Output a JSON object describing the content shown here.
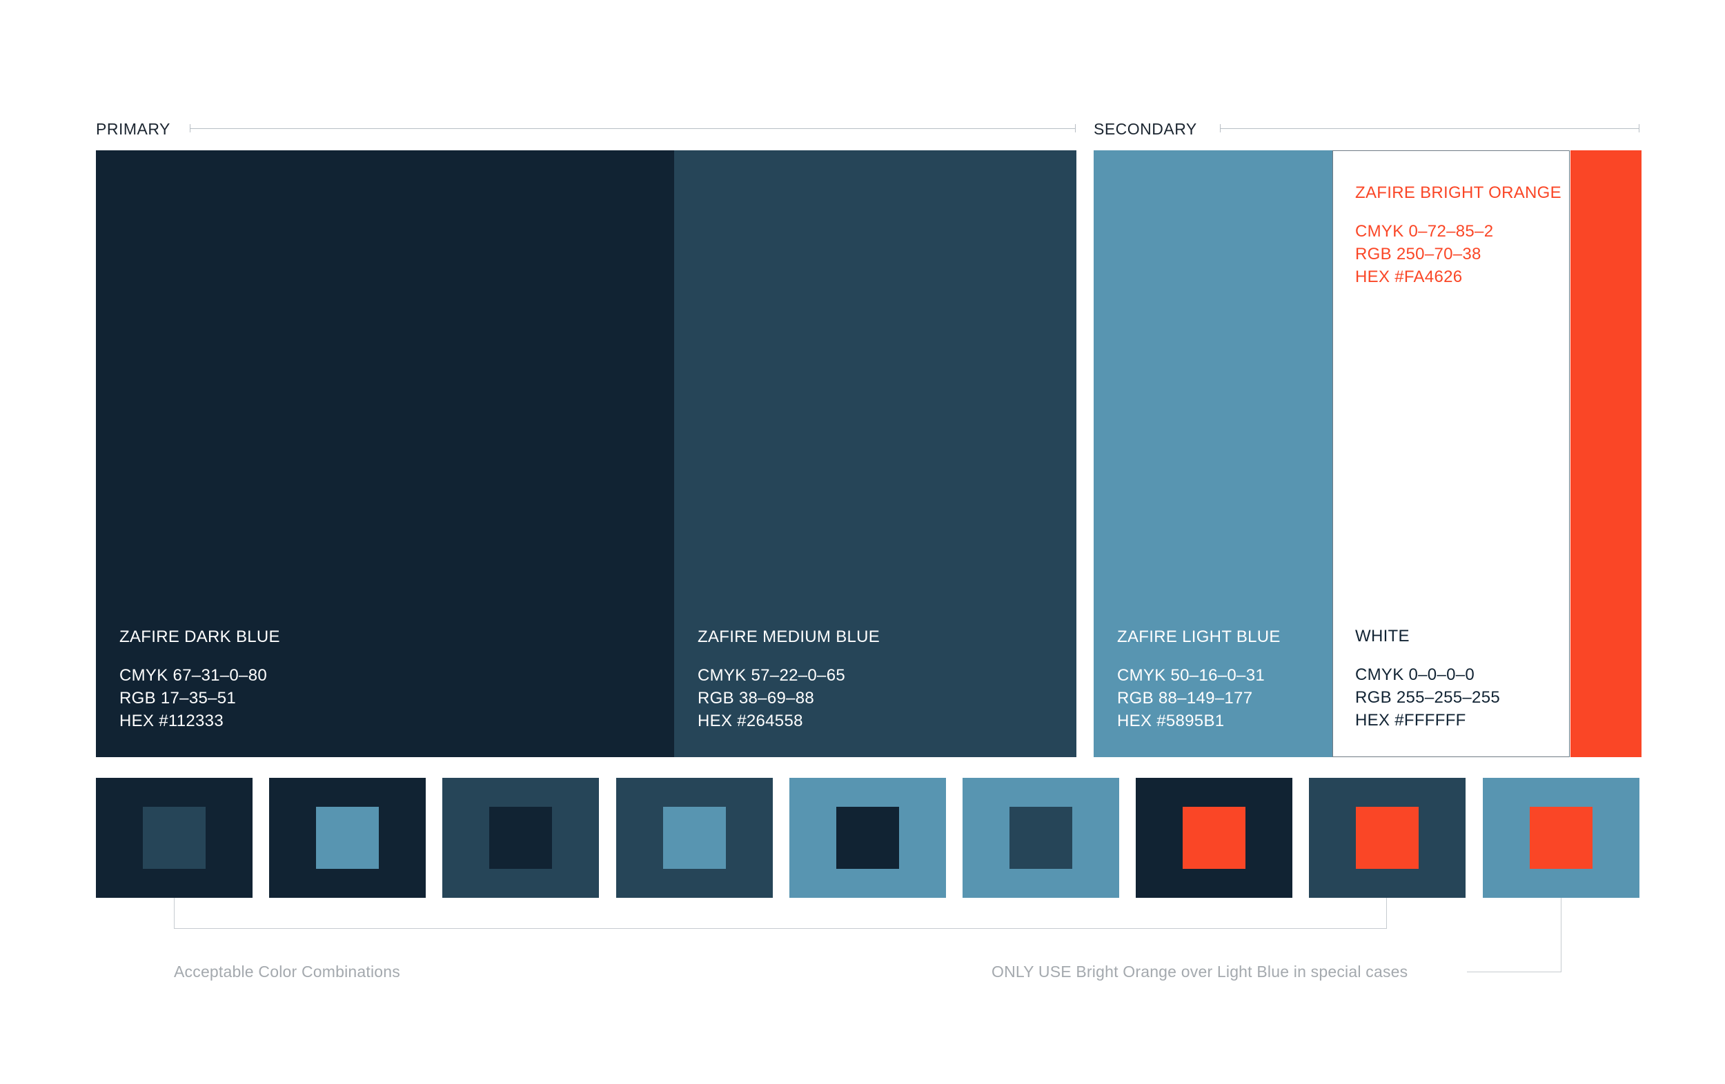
{
  "sections": {
    "primary_label": "PRIMARY",
    "secondary_label": "SECONDARY"
  },
  "swatches": {
    "dark_blue": {
      "name": "ZAFIRE DARK BLUE",
      "cmyk": "CMYK 67–31–0–80",
      "rgb": "RGB 17–35–51",
      "hex": "HEX #112333",
      "color": "#112333"
    },
    "medium_blue": {
      "name": "ZAFIRE MEDIUM BLUE",
      "cmyk": "CMYK 57–22–0–65",
      "rgb": "RGB 38–69–88",
      "hex": "HEX #264558",
      "color": "#264558"
    },
    "light_blue": {
      "name": "ZAFIRE LIGHT BLUE",
      "cmyk": "CMYK 50–16–0–31",
      "rgb": "RGB 88–149–177",
      "hex": "HEX #5895B1",
      "color": "#5895B1"
    },
    "white": {
      "name": "WHITE",
      "cmyk": "CMYK 0–0–0–0",
      "rgb": "RGB 255–255–255",
      "hex": "HEX #FFFFFF",
      "color": "#FFFFFF"
    },
    "bright_orange": {
      "name": "ZAFIRE BRIGHT ORANGE",
      "cmyk": "CMYK 0–72–85–2",
      "rgb": "RGB 250–70–38",
      "hex": "HEX #FA4626",
      "color": "#FA4626"
    }
  },
  "combinations": [
    {
      "background": "#112333",
      "foreground": "#264558"
    },
    {
      "background": "#112333",
      "foreground": "#5895B1"
    },
    {
      "background": "#264558",
      "foreground": "#112333"
    },
    {
      "background": "#264558",
      "foreground": "#5895B1"
    },
    {
      "background": "#5895B1",
      "foreground": "#112333"
    },
    {
      "background": "#5895B1",
      "foreground": "#264558"
    },
    {
      "background": "#112333",
      "foreground": "#FA4626"
    },
    {
      "background": "#264558",
      "foreground": "#FA4626"
    },
    {
      "background": "#5895B1",
      "foreground": "#FA4626"
    }
  ],
  "notes": {
    "acceptable": "Acceptable Color Combinations",
    "special": "ONLY USE Bright Orange over Light Blue in special cases"
  }
}
